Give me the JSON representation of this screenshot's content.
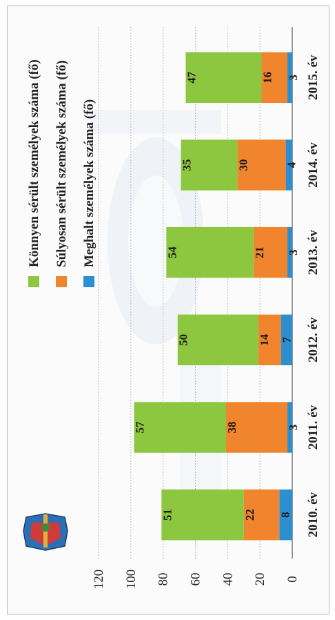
{
  "chart_data": {
    "type": "bar",
    "stacked": true,
    "orientation": "rotated-90-ccw",
    "categories": [
      "2010. év",
      "2011. év",
      "2012. év",
      "2013. év",
      "2014. év",
      "2015. év"
    ],
    "series": [
      {
        "name": "Meghalt személyek száma (fő)",
        "color": "#2e8fd0",
        "values": [
          8,
          3,
          7,
          3,
          4,
          3
        ]
      },
      {
        "name": "Súlyosan sérült személyek száma (fő)",
        "color": "#f0852d",
        "values": [
          22,
          38,
          14,
          21,
          30,
          16
        ]
      },
      {
        "name": "Könnyen sérült személyek száma (fő)",
        "color": "#8dc63f",
        "values": [
          51,
          57,
          50,
          54,
          35,
          47
        ]
      }
    ],
    "yticks": [
      0,
      20,
      40,
      60,
      80,
      100,
      120
    ],
    "ylim": [
      0,
      120
    ],
    "grid": true,
    "legend_position": "top-right"
  }
}
